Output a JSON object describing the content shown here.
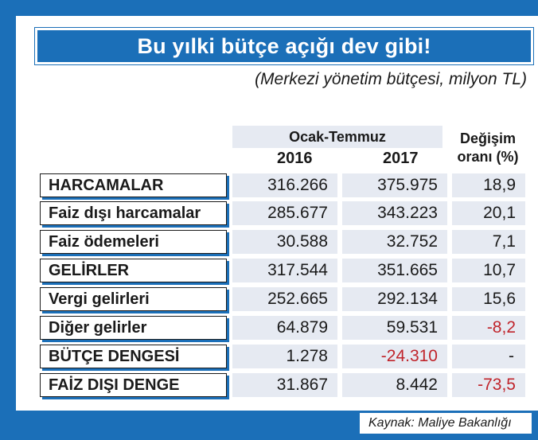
{
  "header": {
    "title": "Bu yılki bütçe açığı dev gibi!",
    "subtitle": "(Merkezi yönetim bütçesi, milyon TL)"
  },
  "columns": {
    "period": "Ocak-Temmuz",
    "year1": "2016",
    "year2": "2017",
    "change_line1": "Değişim",
    "change_line2": "oranı (%)"
  },
  "rows": [
    {
      "label": "HARCAMALAR",
      "v2016": "316.266",
      "v2017": "375.975",
      "change": "18,9"
    },
    {
      "label": "Faiz dışı harcamalar",
      "v2016": "285.677",
      "v2017": "343.223",
      "change": "20,1"
    },
    {
      "label": "Faiz ödemeleri",
      "v2016": "30.588",
      "v2017": "32.752",
      "change": "7,1"
    },
    {
      "label": "GELİRLER",
      "v2016": "317.544",
      "v2017": "351.665",
      "change": "10,7"
    },
    {
      "label": "Vergi gelirleri",
      "v2016": "252.665",
      "v2017": "292.134",
      "change": "15,6"
    },
    {
      "label": "Diğer gelirler",
      "v2016": "64.879",
      "v2017": "59.531",
      "change": "-8,2"
    },
    {
      "label": "BÜTÇE DENGESİ",
      "v2016": "1.278",
      "v2017": "-24.310",
      "change": "-"
    },
    {
      "label": "FAİZ DIŞI DENGE",
      "v2016": "31.867",
      "v2017": "8.442",
      "change": "-73,5"
    }
  ],
  "source": "Kaynak: Maliye Bakanlığı",
  "colors": {
    "brand_blue": "#1b6fb8",
    "cell_bg": "#e6eaf2",
    "negative_red": "#c0242b"
  }
}
